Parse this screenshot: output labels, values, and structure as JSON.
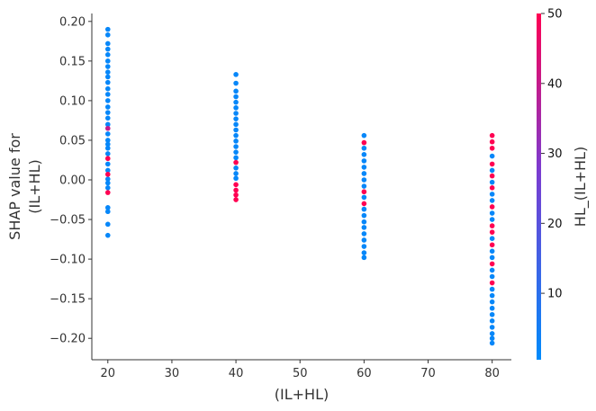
{
  "chart_data": {
    "type": "scatter",
    "plot_kind": "shap-dependence",
    "title": "",
    "xlabel": "(IL+HL)",
    "ylabel_lines": [
      "SHAP value for",
      "(IL+HL)"
    ],
    "xlim": [
      17.5,
      83
    ],
    "ylim": [
      -0.227,
      0.21
    ],
    "xticks": [
      20,
      30,
      40,
      50,
      60,
      70,
      80
    ],
    "yticks": [
      0.2,
      0.15,
      0.1,
      0.05,
      0.0,
      -0.05,
      -0.1,
      -0.15,
      -0.2
    ],
    "ytick_labels": [
      "0.20",
      "0.15",
      "0.10",
      "0.05",
      "0.00",
      "−0.05",
      "−0.10",
      "−0.15",
      "−0.20"
    ],
    "colorbar": {
      "label": "HL_(IL+HL)",
      "range": [
        0.5,
        50
      ],
      "ticks": [
        10,
        20,
        30,
        40,
        50
      ],
      "low_color": "#008bfb",
      "high_color": "#ff0052"
    },
    "grid": false,
    "points": [
      {
        "x": 20,
        "y": 0.19,
        "c": 2
      },
      {
        "x": 20,
        "y": 0.183,
        "c": 2
      },
      {
        "x": 20,
        "y": 0.172,
        "c": 2
      },
      {
        "x": 20,
        "y": 0.165,
        "c": 2
      },
      {
        "x": 20,
        "y": 0.158,
        "c": 2
      },
      {
        "x": 20,
        "y": 0.15,
        "c": 2
      },
      {
        "x": 20,
        "y": 0.143,
        "c": 2
      },
      {
        "x": 20,
        "y": 0.136,
        "c": 2
      },
      {
        "x": 20,
        "y": 0.13,
        "c": 2
      },
      {
        "x": 20,
        "y": 0.123,
        "c": 2
      },
      {
        "x": 20,
        "y": 0.115,
        "c": 2
      },
      {
        "x": 20,
        "y": 0.108,
        "c": 2
      },
      {
        "x": 20,
        "y": 0.1,
        "c": 2
      },
      {
        "x": 20,
        "y": 0.092,
        "c": 2
      },
      {
        "x": 20,
        "y": 0.085,
        "c": 2
      },
      {
        "x": 20,
        "y": 0.078,
        "c": 2
      },
      {
        "x": 20,
        "y": 0.07,
        "c": 2
      },
      {
        "x": 20,
        "y": 0.065,
        "c": 40
      },
      {
        "x": 20,
        "y": 0.058,
        "c": 2
      },
      {
        "x": 20,
        "y": 0.05,
        "c": 2
      },
      {
        "x": 20,
        "y": 0.045,
        "c": 2
      },
      {
        "x": 20,
        "y": 0.04,
        "c": 2
      },
      {
        "x": 20,
        "y": 0.033,
        "c": 2
      },
      {
        "x": 20,
        "y": 0.027,
        "c": 50
      },
      {
        "x": 20,
        "y": 0.02,
        "c": 2
      },
      {
        "x": 20,
        "y": 0.012,
        "c": 2
      },
      {
        "x": 20,
        "y": 0.007,
        "c": 50
      },
      {
        "x": 20,
        "y": 0.001,
        "c": 2
      },
      {
        "x": 20,
        "y": -0.004,
        "c": 2
      },
      {
        "x": 20,
        "y": -0.01,
        "c": 2
      },
      {
        "x": 20,
        "y": -0.016,
        "c": 50
      },
      {
        "x": 20,
        "y": -0.035,
        "c": 2
      },
      {
        "x": 20,
        "y": -0.04,
        "c": 2
      },
      {
        "x": 20,
        "y": -0.056,
        "c": 2
      },
      {
        "x": 20,
        "y": -0.07,
        "c": 2
      },
      {
        "x": 40,
        "y": 0.133,
        "c": 2
      },
      {
        "x": 40,
        "y": 0.122,
        "c": 2
      },
      {
        "x": 40,
        "y": 0.112,
        "c": 2
      },
      {
        "x": 40,
        "y": 0.105,
        "c": 2
      },
      {
        "x": 40,
        "y": 0.098,
        "c": 2
      },
      {
        "x": 40,
        "y": 0.091,
        "c": 2
      },
      {
        "x": 40,
        "y": 0.084,
        "c": 2
      },
      {
        "x": 40,
        "y": 0.077,
        "c": 2
      },
      {
        "x": 40,
        "y": 0.07,
        "c": 2
      },
      {
        "x": 40,
        "y": 0.063,
        "c": 2
      },
      {
        "x": 40,
        "y": 0.056,
        "c": 2
      },
      {
        "x": 40,
        "y": 0.049,
        "c": 2
      },
      {
        "x": 40,
        "y": 0.042,
        "c": 2
      },
      {
        "x": 40,
        "y": 0.035,
        "c": 2
      },
      {
        "x": 40,
        "y": 0.028,
        "c": 2
      },
      {
        "x": 40,
        "y": 0.022,
        "c": 50
      },
      {
        "x": 40,
        "y": 0.015,
        "c": 2
      },
      {
        "x": 40,
        "y": 0.008,
        "c": 2
      },
      {
        "x": 40,
        "y": 0.002,
        "c": 2
      },
      {
        "x": 40,
        "y": -0.006,
        "c": 50
      },
      {
        "x": 40,
        "y": -0.013,
        "c": 50
      },
      {
        "x": 40,
        "y": -0.019,
        "c": 50
      },
      {
        "x": 40,
        "y": -0.025,
        "c": 50
      },
      {
        "x": 60,
        "y": 0.056,
        "c": 2
      },
      {
        "x": 60,
        "y": 0.047,
        "c": 50
      },
      {
        "x": 60,
        "y": 0.04,
        "c": 2
      },
      {
        "x": 60,
        "y": 0.032,
        "c": 2
      },
      {
        "x": 60,
        "y": 0.024,
        "c": 2
      },
      {
        "x": 60,
        "y": 0.016,
        "c": 2
      },
      {
        "x": 60,
        "y": 0.008,
        "c": 2
      },
      {
        "x": 60,
        "y": 0.0,
        "c": 2
      },
      {
        "x": 60,
        "y": -0.008,
        "c": 2
      },
      {
        "x": 60,
        "y": -0.015,
        "c": 50
      },
      {
        "x": 60,
        "y": -0.022,
        "c": 2
      },
      {
        "x": 60,
        "y": -0.03,
        "c": 50
      },
      {
        "x": 60,
        "y": -0.037,
        "c": 2
      },
      {
        "x": 60,
        "y": -0.045,
        "c": 2
      },
      {
        "x": 60,
        "y": -0.053,
        "c": 2
      },
      {
        "x": 60,
        "y": -0.06,
        "c": 2
      },
      {
        "x": 60,
        "y": -0.068,
        "c": 2
      },
      {
        "x": 60,
        "y": -0.076,
        "c": 2
      },
      {
        "x": 60,
        "y": -0.084,
        "c": 2
      },
      {
        "x": 60,
        "y": -0.092,
        "c": 2
      },
      {
        "x": 60,
        "y": -0.098,
        "c": 2
      },
      {
        "x": 80,
        "y": 0.056,
        "c": 50
      },
      {
        "x": 80,
        "y": 0.048,
        "c": 50
      },
      {
        "x": 80,
        "y": 0.04,
        "c": 50
      },
      {
        "x": 80,
        "y": 0.03,
        "c": 2
      },
      {
        "x": 80,
        "y": 0.02,
        "c": 50
      },
      {
        "x": 80,
        "y": 0.012,
        "c": 2
      },
      {
        "x": 80,
        "y": 0.005,
        "c": 50
      },
      {
        "x": 80,
        "y": -0.003,
        "c": 2
      },
      {
        "x": 80,
        "y": -0.01,
        "c": 50
      },
      {
        "x": 80,
        "y": -0.018,
        "c": 2
      },
      {
        "x": 80,
        "y": -0.026,
        "c": 2
      },
      {
        "x": 80,
        "y": -0.034,
        "c": 50
      },
      {
        "x": 80,
        "y": -0.042,
        "c": 2
      },
      {
        "x": 80,
        "y": -0.05,
        "c": 2
      },
      {
        "x": 80,
        "y": -0.058,
        "c": 50
      },
      {
        "x": 80,
        "y": -0.066,
        "c": 50
      },
      {
        "x": 80,
        "y": -0.074,
        "c": 2
      },
      {
        "x": 80,
        "y": -0.082,
        "c": 50
      },
      {
        "x": 80,
        "y": -0.09,
        "c": 2
      },
      {
        "x": 80,
        "y": -0.098,
        "c": 2
      },
      {
        "x": 80,
        "y": -0.106,
        "c": 50
      },
      {
        "x": 80,
        "y": -0.114,
        "c": 2
      },
      {
        "x": 80,
        "y": -0.122,
        "c": 2
      },
      {
        "x": 80,
        "y": -0.13,
        "c": 50
      },
      {
        "x": 80,
        "y": -0.138,
        "c": 2
      },
      {
        "x": 80,
        "y": -0.146,
        "c": 2
      },
      {
        "x": 80,
        "y": -0.154,
        "c": 2
      },
      {
        "x": 80,
        "y": -0.162,
        "c": 2
      },
      {
        "x": 80,
        "y": -0.17,
        "c": 2
      },
      {
        "x": 80,
        "y": -0.178,
        "c": 2
      },
      {
        "x": 80,
        "y": -0.186,
        "c": 2
      },
      {
        "x": 80,
        "y": -0.194,
        "c": 2
      },
      {
        "x": 80,
        "y": -0.2,
        "c": 2
      },
      {
        "x": 80,
        "y": -0.206,
        "c": 2
      }
    ]
  }
}
